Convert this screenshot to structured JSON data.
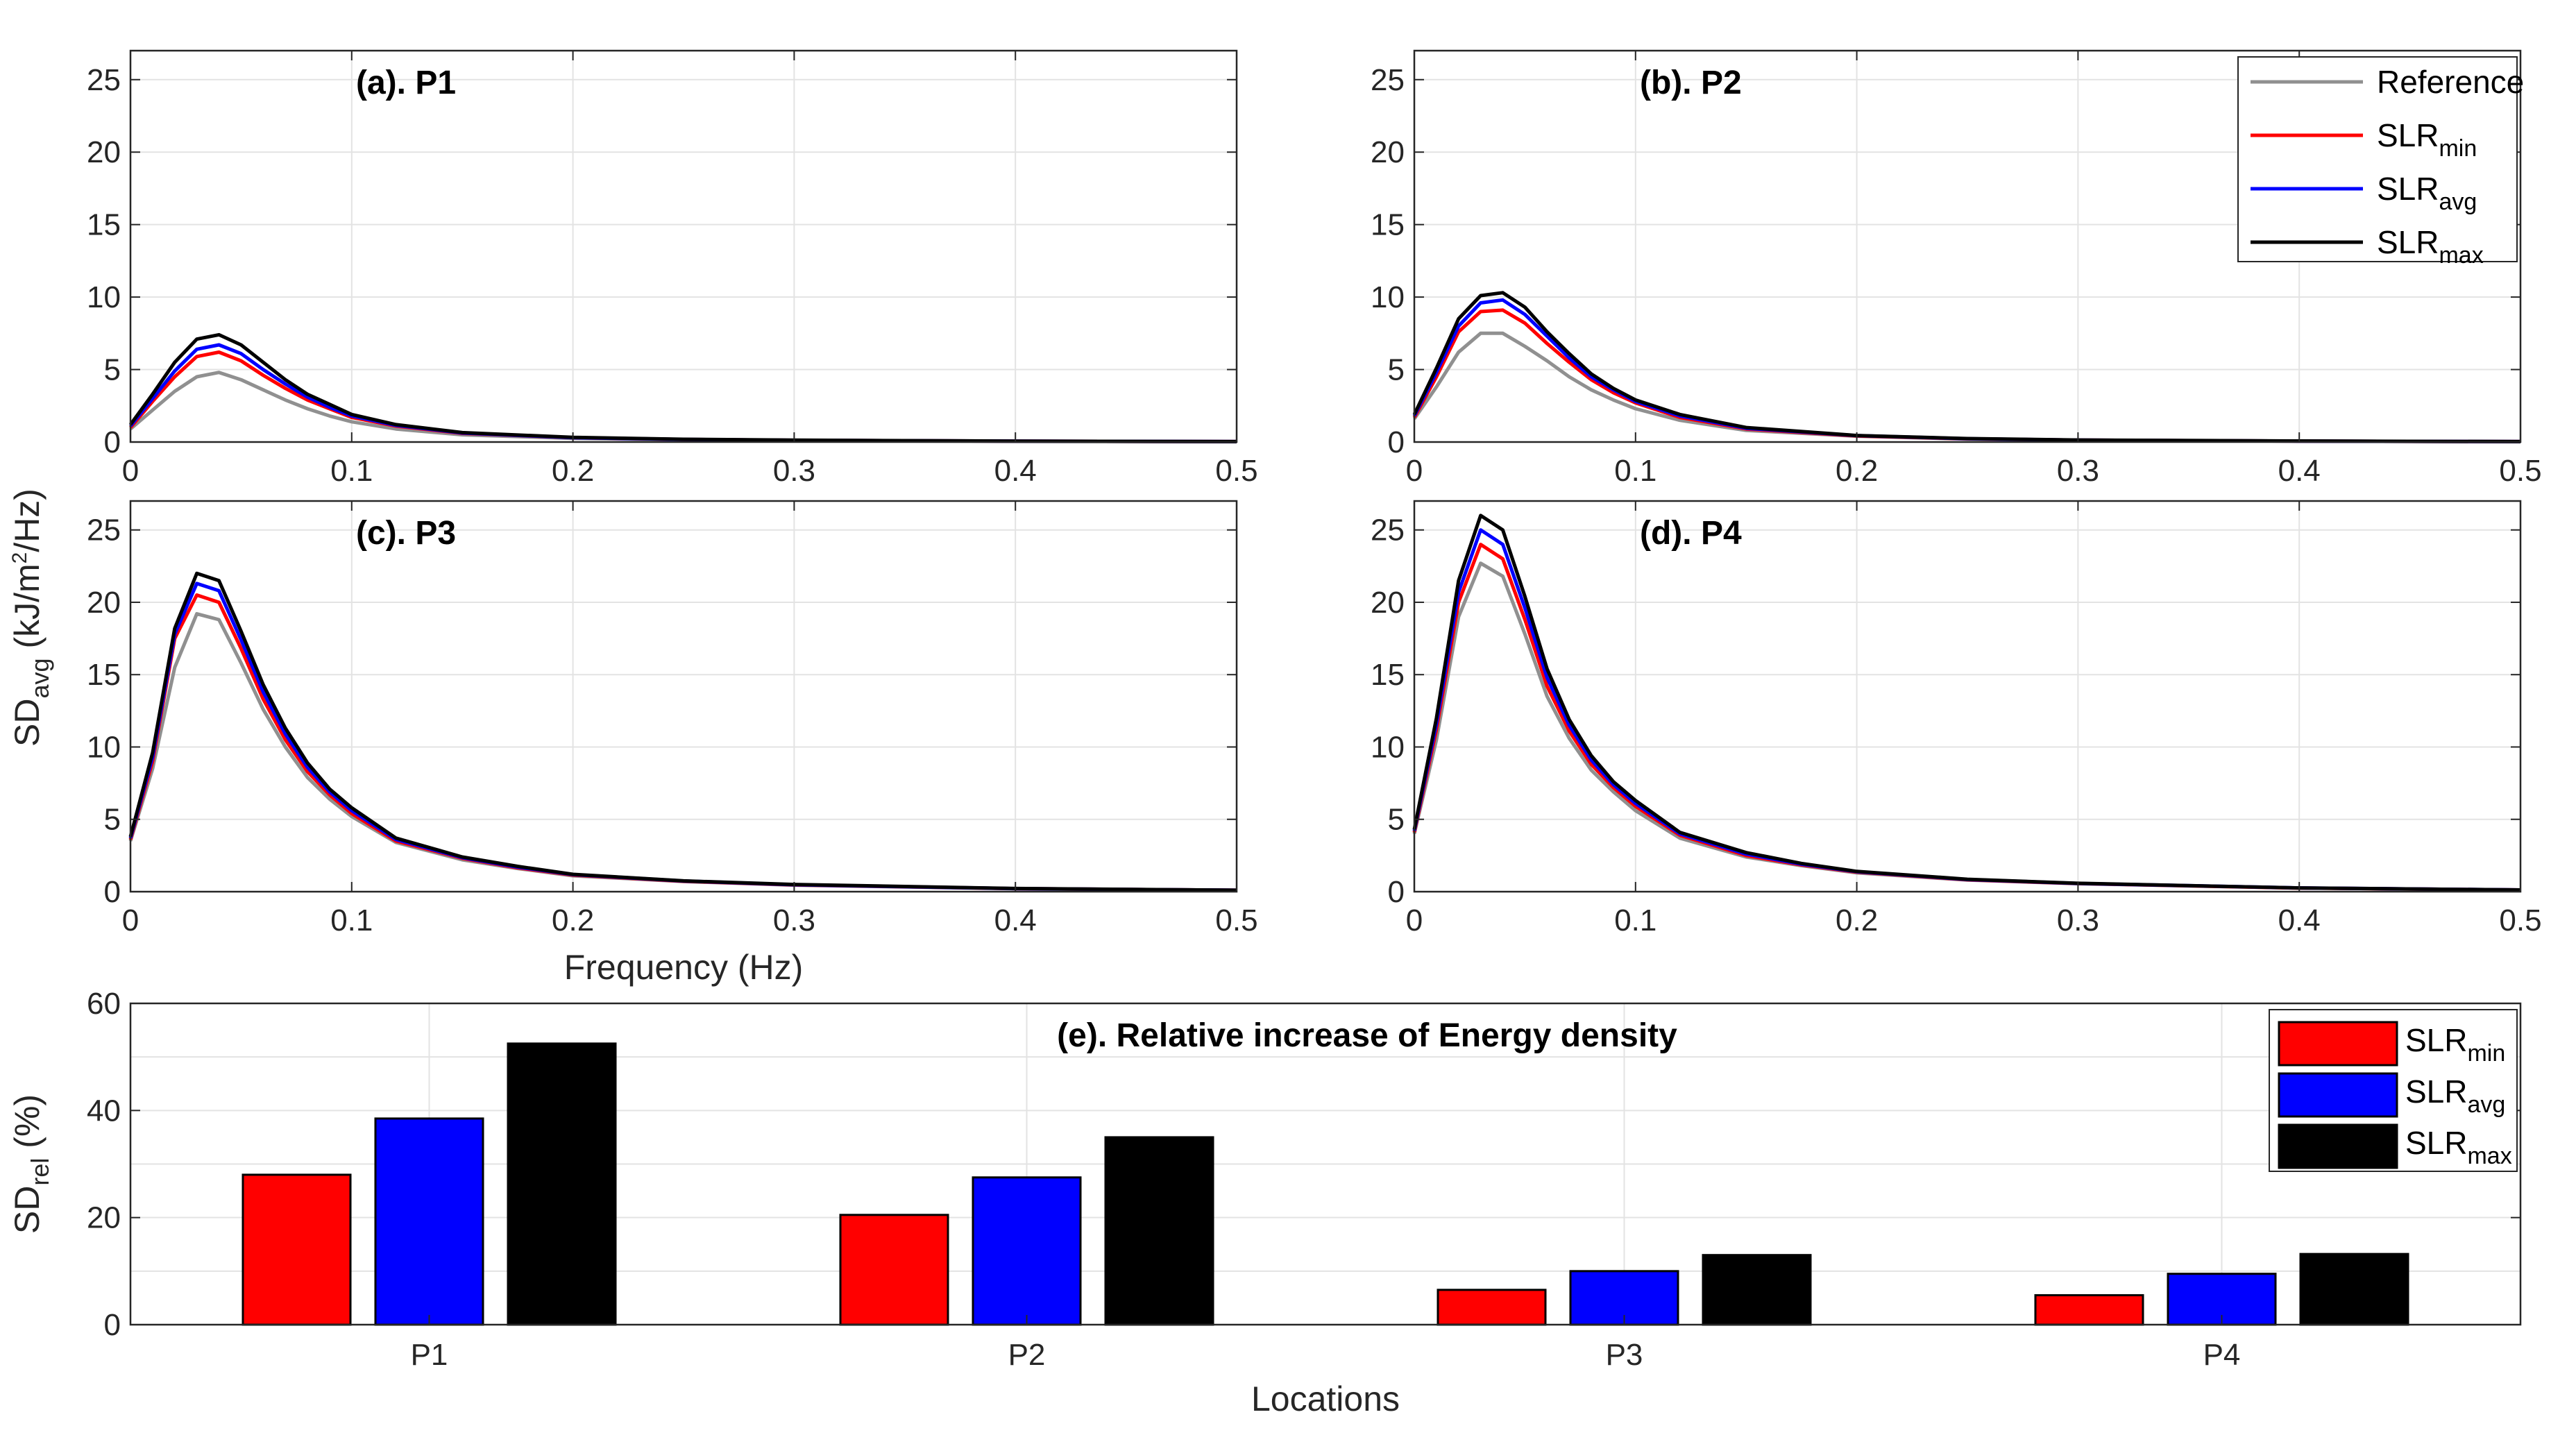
{
  "chart_data": [
    {
      "type": "line",
      "panel": "a",
      "title": "(a). P1",
      "xlim": [
        0,
        0.5
      ],
      "ylim": [
        0,
        27
      ],
      "xticks": [
        0,
        0.1,
        0.2,
        0.3,
        0.4,
        0.5
      ],
      "yticks": [
        0,
        5,
        10,
        15,
        20,
        25
      ],
      "xlabel": "",
      "ylabel": "",
      "x": [
        0,
        0.01,
        0.02,
        0.03,
        0.04,
        0.05,
        0.06,
        0.07,
        0.08,
        0.09,
        0.1,
        0.12,
        0.15,
        0.2,
        0.25,
        0.3,
        0.4,
        0.5
      ],
      "series": [
        {
          "name": "Reference",
          "values": [
            0.9,
            2.2,
            3.5,
            4.5,
            4.8,
            4.3,
            3.6,
            2.9,
            2.3,
            1.8,
            1.4,
            0.9,
            0.5,
            0.25,
            0.15,
            0.1,
            0.05,
            0.03
          ]
        },
        {
          "name": "SLRmin",
          "values": [
            1.0,
            2.8,
            4.5,
            5.9,
            6.2,
            5.6,
            4.6,
            3.7,
            2.9,
            2.3,
            1.7,
            1.1,
            0.6,
            0.3,
            0.18,
            0.12,
            0.06,
            0.03
          ]
        },
        {
          "name": "SLRavg",
          "values": [
            1.1,
            3.0,
            4.9,
            6.4,
            6.7,
            6.1,
            5.0,
            4.0,
            3.1,
            2.4,
            1.8,
            1.15,
            0.62,
            0.3,
            0.18,
            0.12,
            0.06,
            0.03
          ]
        },
        {
          "name": "SLRmax",
          "values": [
            1.2,
            3.3,
            5.5,
            7.1,
            7.4,
            6.7,
            5.5,
            4.3,
            3.3,
            2.6,
            1.9,
            1.2,
            0.65,
            0.32,
            0.19,
            0.13,
            0.06,
            0.03
          ]
        }
      ]
    },
    {
      "type": "line",
      "panel": "b",
      "title": "(b). P2",
      "xlim": [
        0,
        0.5
      ],
      "ylim": [
        0,
        27
      ],
      "xticks": [
        0,
        0.1,
        0.2,
        0.3,
        0.4,
        0.5
      ],
      "yticks": [
        0,
        5,
        10,
        15,
        20,
        25
      ],
      "xlabel": "",
      "ylabel": "",
      "x": [
        0,
        0.01,
        0.02,
        0.03,
        0.04,
        0.05,
        0.06,
        0.07,
        0.08,
        0.09,
        0.1,
        0.12,
        0.15,
        0.2,
        0.25,
        0.3,
        0.4,
        0.5
      ],
      "series": [
        {
          "name": "Reference",
          "values": [
            1.6,
            3.8,
            6.2,
            7.5,
            7.5,
            6.6,
            5.6,
            4.5,
            3.6,
            2.9,
            2.3,
            1.5,
            0.8,
            0.4,
            0.2,
            0.12,
            0.06,
            0.03
          ]
        },
        {
          "name": "SLRmin",
          "values": [
            1.7,
            4.5,
            7.6,
            9.0,
            9.1,
            8.2,
            6.8,
            5.5,
            4.3,
            3.4,
            2.7,
            1.7,
            0.9,
            0.42,
            0.22,
            0.13,
            0.06,
            0.03
          ]
        },
        {
          "name": "SLRavg",
          "values": [
            1.8,
            4.8,
            8.0,
            9.6,
            9.8,
            8.8,
            7.3,
            5.8,
            4.5,
            3.6,
            2.8,
            1.8,
            0.95,
            0.44,
            0.23,
            0.13,
            0.06,
            0.03
          ]
        },
        {
          "name": "SLRmax",
          "values": [
            1.9,
            5.1,
            8.5,
            10.1,
            10.3,
            9.3,
            7.6,
            6.1,
            4.7,
            3.7,
            2.9,
            1.9,
            1.0,
            0.45,
            0.24,
            0.14,
            0.07,
            0.03
          ]
        }
      ]
    },
    {
      "type": "line",
      "panel": "c",
      "title": "(c). P3",
      "xlim": [
        0,
        0.5
      ],
      "ylim": [
        0,
        27
      ],
      "xticks": [
        0,
        0.1,
        0.2,
        0.3,
        0.4,
        0.5
      ],
      "yticks": [
        0,
        5,
        10,
        15,
        20,
        25
      ],
      "xlabel": "Frequency (Hz)",
      "ylabel": "SD",
      "ylabel_sub": "avg",
      "ylabel_unit": " (kJ/m",
      "ylabel_sup": "2",
      "ylabel_end": "/Hz)",
      "x": [
        0,
        0.01,
        0.02,
        0.03,
        0.04,
        0.05,
        0.06,
        0.07,
        0.08,
        0.09,
        0.1,
        0.12,
        0.15,
        0.175,
        0.2,
        0.25,
        0.3,
        0.4,
        0.5
      ],
      "series": [
        {
          "name": "Reference",
          "values": [
            3.5,
            8.5,
            15.5,
            19.2,
            18.8,
            15.8,
            12.6,
            10.0,
            7.9,
            6.4,
            5.2,
            3.4,
            2.2,
            1.6,
            1.1,
            0.7,
            0.45,
            0.2,
            0.1
          ]
        },
        {
          "name": "SLRmin",
          "values": [
            3.6,
            9.0,
            17.5,
            20.5,
            20.0,
            16.8,
            13.3,
            10.5,
            8.3,
            6.7,
            5.4,
            3.5,
            2.3,
            1.65,
            1.15,
            0.72,
            0.47,
            0.21,
            0.1
          ]
        },
        {
          "name": "SLRavg",
          "values": [
            3.7,
            9.3,
            17.8,
            21.3,
            20.8,
            17.4,
            13.8,
            10.9,
            8.6,
            6.9,
            5.6,
            3.6,
            2.35,
            1.7,
            1.18,
            0.74,
            0.48,
            0.21,
            0.1
          ]
        },
        {
          "name": "SLRmax",
          "values": [
            3.8,
            9.6,
            18.2,
            22.0,
            21.5,
            18.0,
            14.3,
            11.3,
            8.9,
            7.1,
            5.8,
            3.7,
            2.4,
            1.75,
            1.2,
            0.75,
            0.5,
            0.22,
            0.1
          ]
        }
      ]
    },
    {
      "type": "line",
      "panel": "d",
      "title": "(d). P4",
      "xlim": [
        0,
        0.5
      ],
      "ylim": [
        0,
        27
      ],
      "xticks": [
        0,
        0.1,
        0.2,
        0.3,
        0.4,
        0.5
      ],
      "yticks": [
        0,
        5,
        10,
        15,
        20,
        25
      ],
      "xlabel": "",
      "ylabel": "",
      "x": [
        0,
        0.01,
        0.02,
        0.03,
        0.04,
        0.05,
        0.06,
        0.07,
        0.08,
        0.09,
        0.1,
        0.12,
        0.15,
        0.175,
        0.2,
        0.25,
        0.3,
        0.4,
        0.5
      ],
      "series": [
        {
          "name": "Reference",
          "values": [
            4.0,
            10.5,
            19.0,
            22.7,
            21.8,
            17.8,
            13.5,
            10.6,
            8.4,
            6.9,
            5.6,
            3.7,
            2.4,
            1.8,
            1.3,
            0.8,
            0.55,
            0.25,
            0.12
          ]
        },
        {
          "name": "SLRmin",
          "values": [
            4.1,
            11.2,
            20.0,
            24.0,
            23.0,
            18.8,
            14.2,
            11.1,
            8.8,
            7.2,
            5.9,
            3.9,
            2.5,
            1.85,
            1.35,
            0.82,
            0.56,
            0.25,
            0.12
          ]
        },
        {
          "name": "SLRavg",
          "values": [
            4.2,
            11.6,
            20.7,
            25.0,
            24.0,
            19.6,
            14.8,
            11.5,
            9.1,
            7.4,
            6.1,
            4.0,
            2.6,
            1.9,
            1.38,
            0.84,
            0.57,
            0.26,
            0.12
          ]
        },
        {
          "name": "SLRmax",
          "values": [
            4.3,
            12.0,
            21.5,
            26.0,
            25.0,
            20.4,
            15.4,
            11.9,
            9.4,
            7.6,
            6.3,
            4.1,
            2.7,
            1.95,
            1.4,
            0.86,
            0.58,
            0.26,
            0.12
          ]
        }
      ]
    },
    {
      "type": "bar",
      "panel": "e",
      "title": "(e). Relative increase of Energy density",
      "categories": [
        "P1",
        "P2",
        "P3",
        "P4"
      ],
      "xlabel": "Locations",
      "ylabel": "SD",
      "ylabel_sub": "rel",
      "ylabel_unit": " (%)",
      "ylim": [
        0,
        60
      ],
      "yticks": [
        0,
        20,
        40,
        60
      ],
      "series": [
        {
          "name": "SLRmin",
          "values": [
            28,
            20.5,
            6.5,
            5.5
          ]
        },
        {
          "name": "SLRavg",
          "values": [
            38.5,
            27.5,
            10,
            9.5
          ]
        },
        {
          "name": "SLRmax",
          "values": [
            52.5,
            35,
            13,
            13.2
          ]
        }
      ]
    }
  ],
  "legend_lines": [
    {
      "base": "Reference",
      "sub": "",
      "color": "#909090"
    },
    {
      "base": "SLR",
      "sub": "min",
      "color": "#ff0000"
    },
    {
      "base": "SLR",
      "sub": "avg",
      "color": "#0000ff"
    },
    {
      "base": "SLR",
      "sub": "max",
      "color": "#000000"
    }
  ],
  "legend_bars": [
    {
      "base": "SLR",
      "sub": "min",
      "color": "#ff0000"
    },
    {
      "base": "SLR",
      "sub": "avg",
      "color": "#0000ff"
    },
    {
      "base": "SLR",
      "sub": "max",
      "color": "#000000"
    }
  ],
  "colors": {
    "Reference": "#909090",
    "SLRmin": "#ff0000",
    "SLRavg": "#0000ff",
    "SLRmax": "#000000",
    "grid": "#e3e3e3",
    "axis": "#262626"
  }
}
